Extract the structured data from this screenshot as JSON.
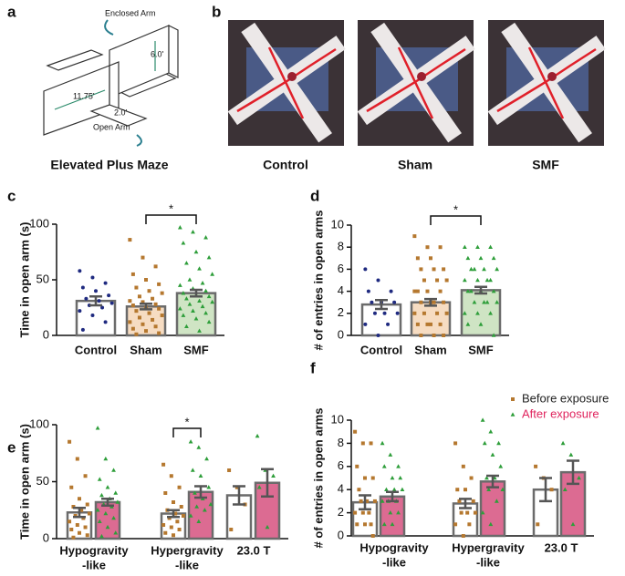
{
  "panels": {
    "a": "a",
    "b": "b",
    "c": "c",
    "d": "d",
    "e": "e",
    "f": "f"
  },
  "maze": {
    "title": "Elevated Plus Maze",
    "enclosed_label": "Enclosed Arm",
    "open_label": "Open Arm",
    "dim_height": "6.0'",
    "dim_length": "11.75'",
    "dim_width": "2.0'"
  },
  "photos": {
    "labels": [
      "Control",
      "Sham",
      "SMF"
    ]
  },
  "chart_data": [
    {
      "type": "bar",
      "ylabel": "Time in open arm (s)",
      "categories": [
        "Control",
        "Sham",
        "SMF"
      ],
      "ylim": [
        0,
        100
      ],
      "yticks": [
        0,
        50,
        100
      ],
      "significance": {
        "label": "*"
      },
      "series": [
        {
          "values": [
            31,
            26,
            38
          ],
          "errors": [
            4,
            2.5,
            3
          ],
          "colors": [
            "#ffffff",
            "#f6dcc2",
            "#cfe4c4"
          ],
          "point_colors": [
            "#1f2a80",
            "#b5782f",
            "#2e9e3a"
          ],
          "markers": [
            "circle",
            "square",
            "triangle"
          ],
          "points": [
            [
              58,
              52,
              47,
              43,
              40,
              36,
              33,
              31,
              29,
              27,
              25,
              22,
              18,
              12,
              5
            ],
            [
              86,
              70,
              62,
              55,
              50,
              46,
              43,
              40,
              38,
              35,
              33,
              31,
              30,
              28,
              27,
              25,
              24,
              22,
              20,
              18,
              16,
              14,
              12,
              10,
              8,
              6,
              4,
              2,
              1
            ],
            [
              97,
              93,
              88,
              83,
              75,
              70,
              65,
              60,
              55,
              50,
              47,
              45,
              42,
              40,
              38,
              36,
              35,
              33,
              31,
              30,
              28,
              26,
              24,
              22,
              20,
              18,
              15,
              12,
              8,
              4
            ]
          ]
        }
      ]
    },
    {
      "type": "bar",
      "ylabel": "# of entries in open arms",
      "categories": [
        "Control",
        "Sham",
        "SMF"
      ],
      "ylim": [
        0,
        10
      ],
      "yticks": [
        0,
        2,
        4,
        6,
        8,
        10
      ],
      "significance": {
        "label": "*"
      },
      "series": [
        {
          "values": [
            2.8,
            3.0,
            4.1
          ],
          "errors": [
            0.4,
            0.3,
            0.3
          ],
          "colors": [
            "#ffffff",
            "#f6dcc2",
            "#cfe4c4"
          ],
          "point_colors": [
            "#1f2a80",
            "#b5782f",
            "#2e9e3a"
          ],
          "markers": [
            "circle",
            "square",
            "triangle"
          ],
          "points": [
            [
              6,
              5,
              4,
              4,
              3,
              3,
              3,
              2,
              2,
              2,
              1,
              1,
              0
            ],
            [
              9,
              8,
              8,
              7,
              7,
              6,
              6,
              6,
              5,
              5,
              5,
              4,
              4,
              4,
              4,
              3,
              3,
              3,
              3,
              2,
              2,
              2,
              2,
              1,
              1,
              1,
              1,
              0,
              0,
              0
            ],
            [
              8,
              8,
              8,
              7,
              7,
              7,
              6,
              6,
              6,
              6,
              5,
              5,
              5,
              5,
              4,
              4,
              4,
              4,
              3,
              3,
              3,
              3,
              2,
              2,
              2,
              1,
              1,
              0
            ]
          ]
        }
      ]
    },
    {
      "type": "grouped-bar",
      "ylabel": "Time in open arm (s)",
      "categories": [
        [
          "Hypogravity",
          "-like"
        ],
        [
          "Hypergravity",
          "-like"
        ],
        [
          "23.0 T"
        ]
      ],
      "ylim": [
        0,
        100
      ],
      "yticks": [
        0,
        50,
        100
      ],
      "significance": {
        "label": "*"
      },
      "series": [
        {
          "values": [
            23,
            22,
            38
          ],
          "errors": [
            4,
            3,
            8
          ],
          "color": "#ffffff",
          "point_color": "#b5782f",
          "marker": "square",
          "points": [
            [
              85,
              70,
              55,
              45,
              35,
              30,
              28,
              25,
              22,
              20,
              18,
              15,
              12,
              10,
              8,
              5,
              3,
              1
            ],
            [
              65,
              55,
              45,
              40,
              32,
              28,
              25,
              22,
              20,
              18,
              15,
              12,
              10,
              8,
              5,
              3
            ],
            [
              60,
              45,
              30,
              8
            ]
          ]
        },
        {
          "values": [
            32,
            41,
            49
          ],
          "errors": [
            3,
            5,
            12
          ],
          "color": "#dc6b92",
          "point_color": "#2e9e3a",
          "marker": "triangle",
          "points": [
            [
              97,
              70,
              60,
              52,
              45,
              40,
              38,
              35,
              32,
              30,
              28,
              25,
              22,
              18,
              15,
              10,
              5,
              2
            ],
            [
              85,
              80,
              70,
              60,
              55,
              45,
              40,
              35,
              30,
              28,
              25,
              20,
              15
            ],
            [
              90,
              60,
              55,
              45,
              10
            ]
          ]
        }
      ]
    },
    {
      "type": "grouped-bar",
      "ylabel": "# of entries in open arms",
      "categories": [
        [
          "Hypogravity",
          "-like"
        ],
        [
          "Hypergravity",
          "-like"
        ],
        [
          "23.0 T"
        ]
      ],
      "ylim": [
        0,
        10
      ],
      "yticks": [
        0,
        2,
        4,
        6,
        8,
        10
      ],
      "series": [
        {
          "name": "Before exposure",
          "label_color": "#222222",
          "values": [
            2.9,
            2.8,
            4.0
          ],
          "errors": [
            0.6,
            0.4,
            1.0
          ],
          "color": "#ffffff",
          "point_color": "#b5782f",
          "marker": "square",
          "points": [
            [
              9,
              8,
              8,
              6,
              5,
              5,
              4,
              3,
              3,
              3,
              2,
              2,
              2,
              1,
              1,
              1,
              0
            ],
            [
              8,
              6,
              5,
              4,
              4,
              3,
              3,
              2,
              2,
              2,
              1,
              1,
              0
            ],
            [
              6,
              5,
              4,
              1
            ]
          ]
        },
        {
          "name": "After exposure",
          "label_color": "#e0245e",
          "values": [
            3.4,
            4.7,
            5.5
          ],
          "errors": [
            0.4,
            0.5,
            1.0
          ],
          "color": "#dc6b92",
          "point_color": "#2e9e3a",
          "marker": "triangle",
          "points": [
            [
              8,
              7,
              6,
              6,
              5,
              5,
              4,
              4,
              4,
              3,
              3,
              3,
              2,
              2,
              1,
              1
            ],
            [
              10,
              9,
              8,
              8,
              7,
              6,
              5,
              5,
              4,
              4,
              3,
              2,
              1
            ],
            [
              8,
              7,
              5,
              4,
              1
            ]
          ]
        }
      ]
    }
  ]
}
